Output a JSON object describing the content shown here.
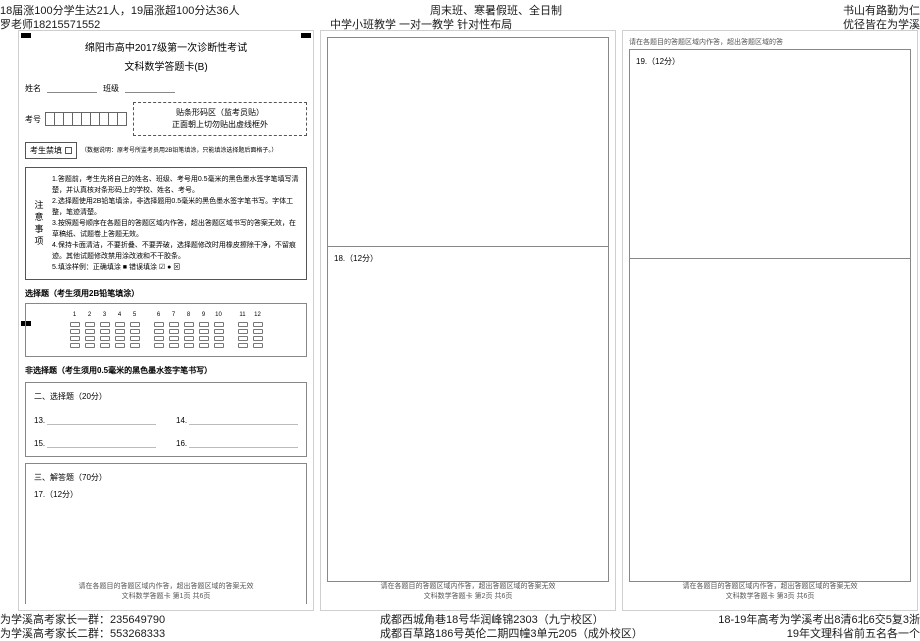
{
  "header": {
    "top_left_1": "18届涨100分学生达21人，19届涨超100分达36人",
    "top_left_2": "罗老师18215571552",
    "top_center_1": "周末班、寒暑假班、全日制",
    "top_center_2": "中学小班教学  一对一教学  针对性布局",
    "top_right_1": "书山有路勤为仁",
    "top_right_2": "优径皆在为学溪"
  },
  "footer": {
    "bot_left_1": "为学溪高考家长一群：235649790",
    "bot_left_2": "为学溪高考家长二群：553268333",
    "bot_center_1": "成都西城角巷18号华润峰锦2303（九宁校区）",
    "bot_center_2": "成都百草路186号英伦二期四幢3单元205（成外校区）",
    "bot_right_1": "18-19年高考为学溪考出8清6北6交5复3浙",
    "bot_right_2": "19年文理科省前五名各一个"
  },
  "sheet1": {
    "title1": "绵阳市高中2017级第一次诊断性考试",
    "title2": "文科数学答题卡(B)",
    "name_label": "姓名",
    "class_label": "班级",
    "examno_label": "考号",
    "barcode_line1": "贴条形码区（监考员贴）",
    "barcode_line2": "正面朝上切勿贴出虚线框外",
    "forbid_label": "考生禁填",
    "forbid_note": "（数据说明：原考号所监考员用2B铅笔填涂，只能填涂选择题后面格子。）",
    "notice_title": "注意事项",
    "notice_body": "1.答题前，考生先将自己的姓名、班级、考号用0.5毫米的黑色墨水签字笔填写清楚，并认真核对条形码上的学校、姓名、考号。\n2.选择题使用2B铅笔填涂，非选择题用0.5毫米的黑色墨水签字笔书写。字体工整，笔迹清楚。\n3.按照题号顺序在各题目的答题区域内作答，超出答题区域书写的答案无效，在草稿纸、试题卷上答题无效。\n4.保持卡面清洁，不要折叠、不要弄破，选择题修改时用橡皮擦除干净，不留痕迹。其他试题修改禁用涂改液和不干胶条。\n5.填涂样例：正确填涂 ■  错误填涂 ☑ ● ⊠",
    "fill_example_label_ok": "正确填涂",
    "fill_example_label_bad": "错误填涂",
    "mc_title": "选择题（考生须用2B铅笔填涂）",
    "mc_numbers": [
      "1",
      "2",
      "3",
      "4",
      "5",
      "6",
      "7",
      "8",
      "9",
      "10",
      "11",
      "12"
    ],
    "nonmc_title": "非选择题（考生须用0.5毫米的黑色墨水签字笔书写）",
    "fill_title": "二、选择题（20分）",
    "fill_items": [
      "13.",
      "14.",
      "15.",
      "16."
    ],
    "ans_title": "三、解答题（70分）",
    "ans_sub": "17.（12分）",
    "footer_note_1": "请在各题目的答题区域内作答，超出答题区域的答案无效",
    "footer_note_2": "文科数学答题卡  第1页  共6页"
  },
  "sheet2": {
    "q18": "18.（12分）",
    "footer_note_1": "请在各题目的答题区域内作答，超出答题区域的答案无效",
    "footer_note_2": "文科数学答题卡  第2页  共6页"
  },
  "sheet3": {
    "top_note": "请在各题目的答题区域内作答，超出答题区域的答",
    "q19": "19.（12分）",
    "footer_note_1": "请在各题目的答题区域内作答，超出答题区域的答案无效",
    "footer_note_2": "文科数学答题卡  第3页  共6页"
  },
  "styling": {
    "page_bg": "#ffffff",
    "border_color": "#888888",
    "text_color": "#000000",
    "footer_color": "#555555",
    "header_fontsize": 11,
    "body_fontsize": 8,
    "small_fontsize": 7
  }
}
